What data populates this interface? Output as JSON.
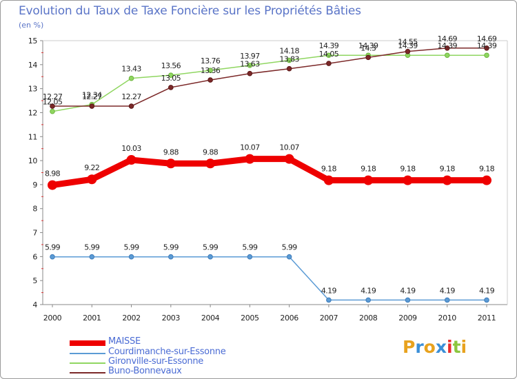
{
  "chart_data": {
    "type": "line",
    "title": "Evolution du Taux de Taxe Foncière sur les Propriétés Bâties",
    "ylabel": "(en %)",
    "xlabel": "",
    "ylim": [
      4,
      15
    ],
    "yticks": [
      4,
      5,
      6,
      7,
      8,
      9,
      10,
      11,
      12,
      13,
      14,
      15
    ],
    "x": [
      2000,
      2001,
      2002,
      2003,
      2004,
      2005,
      2006,
      2007,
      2008,
      2009,
      2010,
      2011
    ],
    "x_labels": [
      "2000",
      "2001",
      "2002",
      "2003",
      "2004",
      "2005",
      "2006",
      "2007",
      "2008",
      "2009",
      "2010",
      "2011"
    ],
    "grid": false,
    "legend_position": "bottom-left",
    "series": [
      {
        "name": "MAISSE",
        "color": "#ee0000",
        "values": [
          8.98,
          9.22,
          10.03,
          9.88,
          9.88,
          10.07,
          10.07,
          9.18,
          9.18,
          9.18,
          9.18,
          9.18
        ],
        "labels": [
          "8.98",
          "9.22",
          "10.03",
          "9.88",
          "9.88",
          "10.07",
          "10.07",
          "9.18",
          "9.18",
          "9.18",
          "9.18",
          "9.18"
        ]
      },
      {
        "name": "Courdimanche-sur-Essonne",
        "color": "#5b9bd5",
        "values": [
          5.99,
          5.99,
          5.99,
          5.99,
          5.99,
          5.99,
          5.99,
          4.19,
          4.19,
          4.19,
          4.19,
          4.19
        ],
        "labels": [
          "5.99",
          "5.99",
          "5.99",
          "5.99",
          "5.99",
          "5.99",
          "5.99",
          "4.19",
          "4.19",
          "4.19",
          "4.19",
          "4.19"
        ]
      },
      {
        "name": "Gironville-sur-Essonne",
        "color": "#8fd660",
        "values": [
          12.05,
          12.34,
          13.43,
          13.56,
          13.76,
          13.97,
          14.18,
          14.39,
          14.39,
          14.39,
          14.39,
          14.39
        ],
        "labels": [
          "12.05",
          "12.34",
          "13.43",
          "13.56",
          "13.76",
          "13.97",
          "14.18",
          "14.39",
          "14.39",
          "14.39",
          "14.39",
          "14.39"
        ]
      },
      {
        "name": "Buno-Bonnevaux",
        "color": "#7b2828",
        "values": [
          12.27,
          12.27,
          12.27,
          13.05,
          13.36,
          13.63,
          13.83,
          14.05,
          14.3,
          14.55,
          14.69,
          14.69
        ],
        "labels": [
          "12.27",
          "12.27",
          "12.27",
          "13.05",
          "13.36",
          "13.63",
          "13.83",
          "14.05",
          "14.3",
          "14.55",
          "14.69",
          "14.69"
        ]
      }
    ]
  },
  "logo": {
    "text": "Proxiti",
    "letters": [
      {
        "ch": "P",
        "color": "#e8a21e"
      },
      {
        "ch": "r",
        "color": "#3b8fd8"
      },
      {
        "ch": "o",
        "color": "#e8a21e"
      },
      {
        "ch": "x",
        "color": "#3b8fd8"
      },
      {
        "ch": "i",
        "color": "#ea2d2d"
      },
      {
        "ch": "t",
        "color": "#8cc63f"
      },
      {
        "ch": "i",
        "color": "#e8a21e"
      }
    ]
  }
}
